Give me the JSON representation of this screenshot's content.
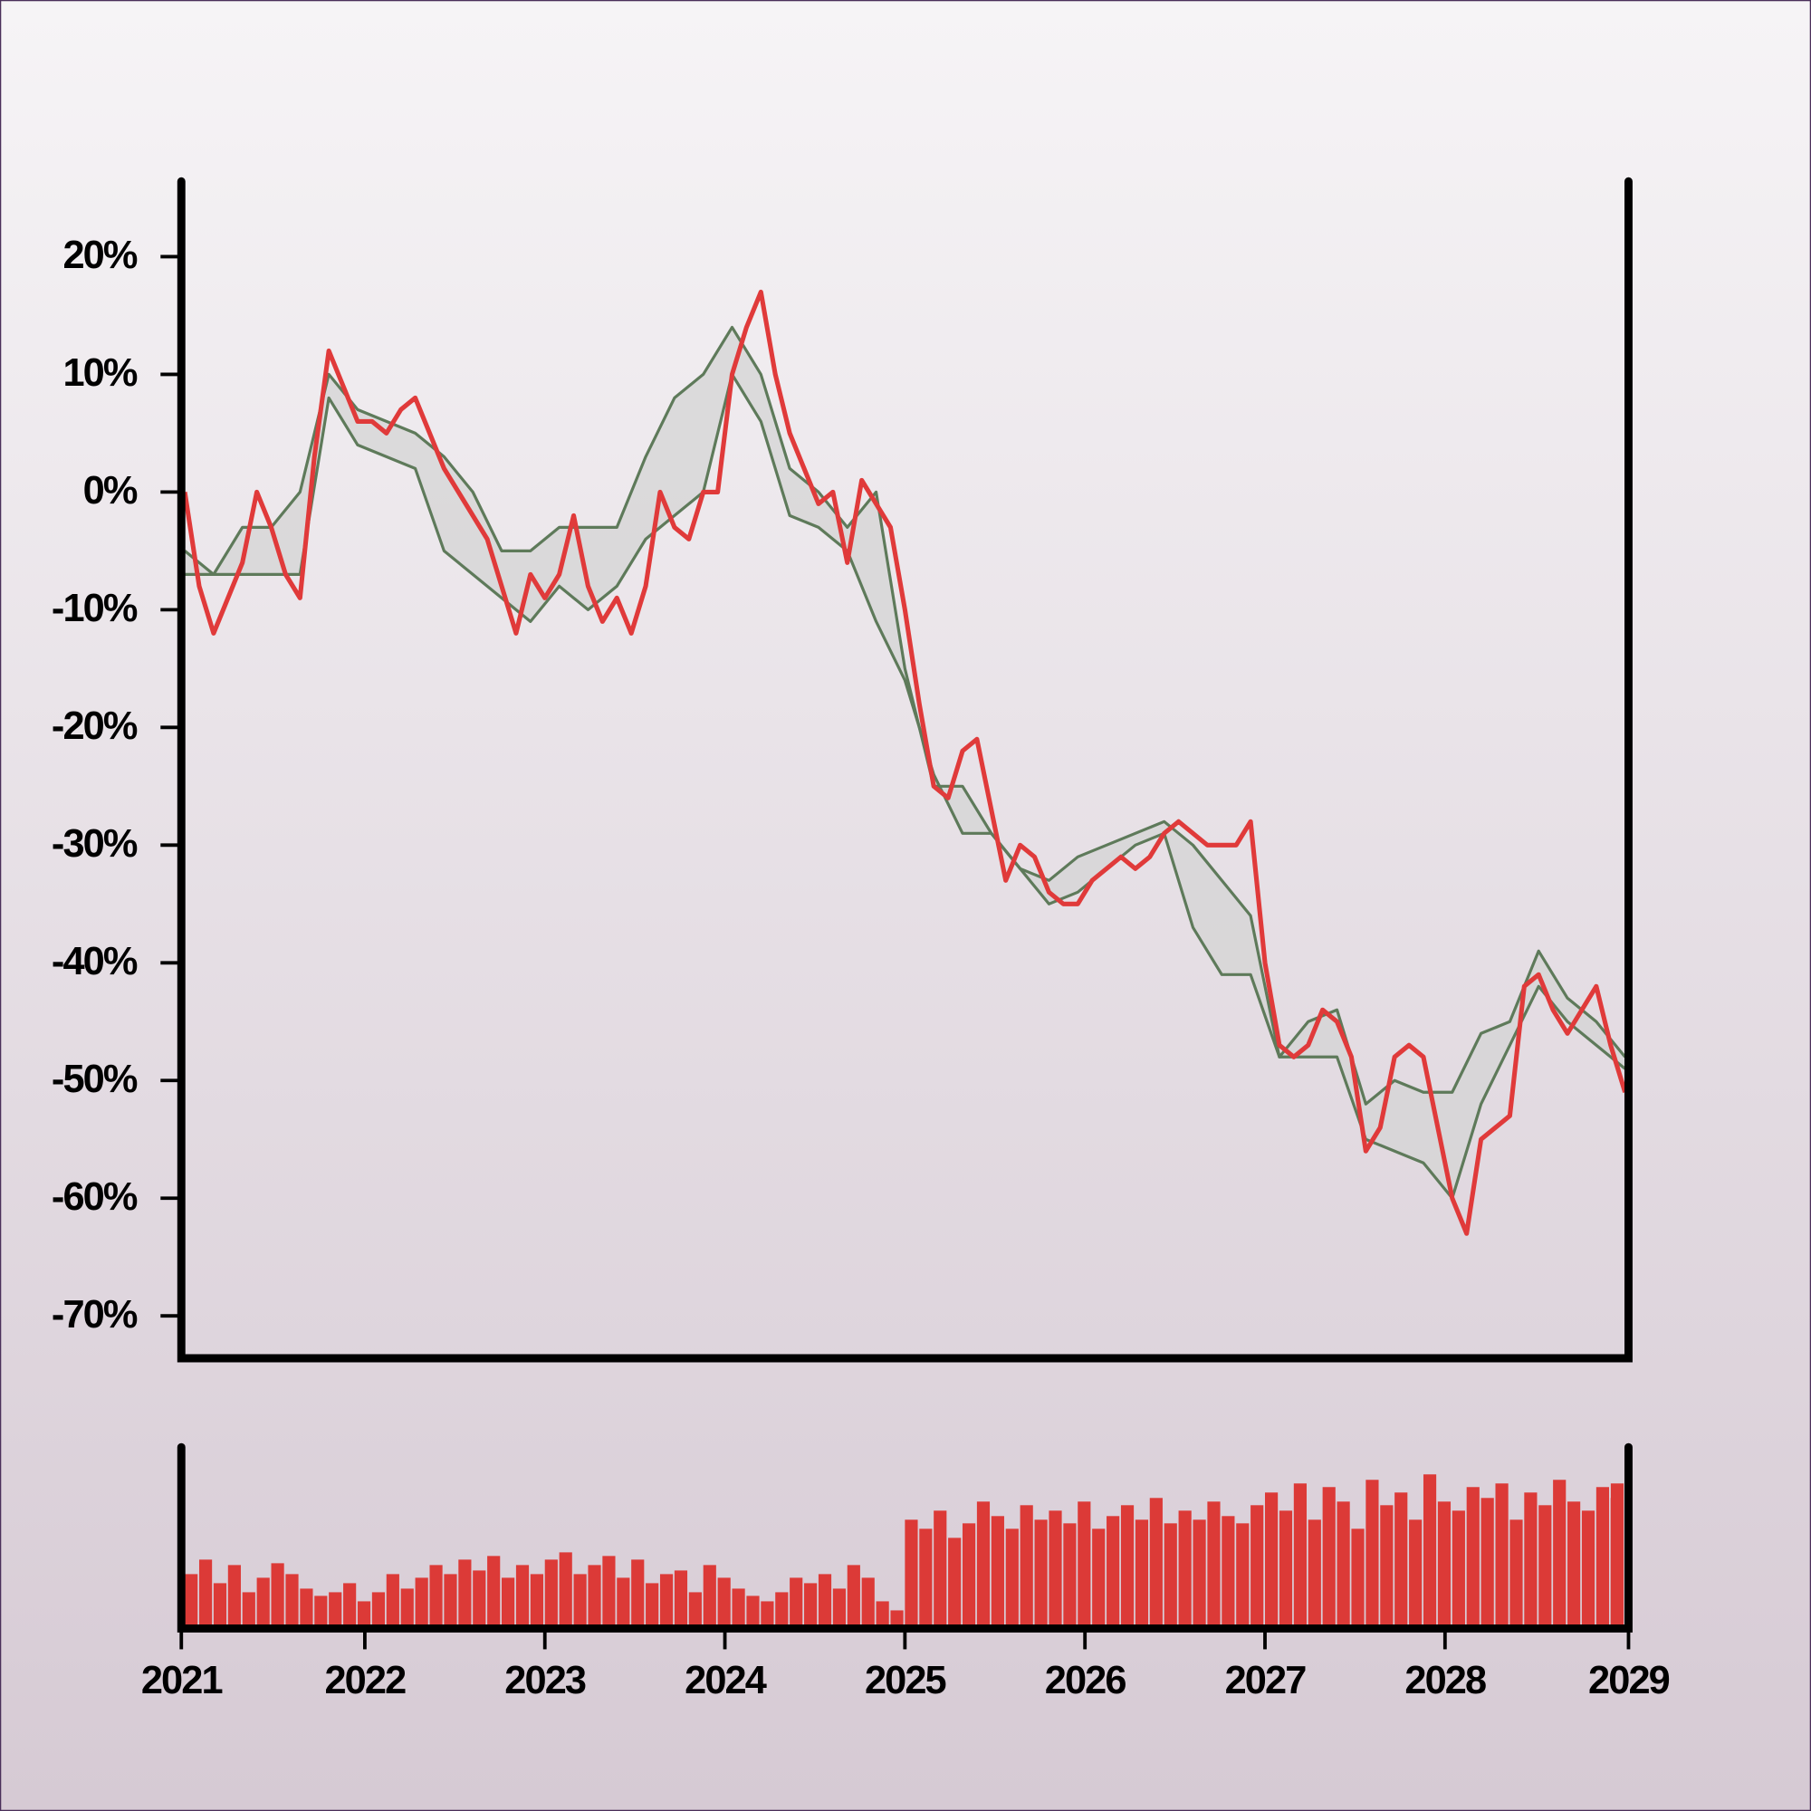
{
  "chart_data": [
    {
      "type": "line",
      "xlim": [
        2021,
        2029
      ],
      "ylim": [
        -73.6,
        26.4
      ],
      "yticks": [
        {
          "value": 20,
          "label": "20%"
        },
        {
          "value": 10,
          "label": "10%"
        },
        {
          "value": 0,
          "label": "0%"
        },
        {
          "value": -10,
          "label": "-10%"
        },
        {
          "value": -20,
          "label": "-20%"
        },
        {
          "value": -30,
          "label": "-30%"
        },
        {
          "value": -40,
          "label": "-40%"
        },
        {
          "value": -50,
          "label": "-50%"
        },
        {
          "value": -60,
          "label": "-60%"
        },
        {
          "value": -70,
          "label": "-70%"
        }
      ],
      "fill_between": [
        1,
        2
      ],
      "fill_color": "#d4d4d4",
      "series": [
        {
          "color": "#e03a3a",
          "x": [
            2021.0,
            2021.08,
            2021.16,
            2021.24,
            2021.32,
            2021.4,
            2021.48,
            2021.56,
            2021.64,
            2021.72,
            2021.8,
            2021.88,
            2021.96,
            2022.04,
            2022.12,
            2022.2,
            2022.28,
            2022.36,
            2022.44,
            2022.52,
            2022.6,
            2022.68,
            2022.76,
            2022.84,
            2022.92,
            2023.0,
            2023.08,
            2023.16,
            2023.24,
            2023.32,
            2023.4,
            2023.48,
            2023.56,
            2023.64,
            2023.72,
            2023.8,
            2023.88,
            2023.96,
            2024.04,
            2024.12,
            2024.2,
            2024.28,
            2024.36,
            2024.44,
            2024.52,
            2024.6,
            2024.68,
            2024.76,
            2024.84,
            2024.92,
            2025.0,
            2025.08,
            2025.16,
            2025.24,
            2025.32,
            2025.4,
            2025.48,
            2025.56,
            2025.64,
            2025.72,
            2025.8,
            2025.88,
            2025.96,
            2026.04,
            2026.12,
            2026.2,
            2026.28,
            2026.36,
            2026.44,
            2026.52,
            2026.6,
            2026.68,
            2026.76,
            2026.84,
            2026.92,
            2027.0,
            2027.08,
            2027.16,
            2027.24,
            2027.32,
            2027.4,
            2027.48,
            2027.56,
            2027.64,
            2027.72,
            2027.8,
            2027.88,
            2027.96,
            2028.04,
            2028.12,
            2028.2,
            2028.28,
            2028.36,
            2028.44,
            2028.52,
            2028.6,
            2028.68,
            2028.76,
            2028.84,
            2028.92,
            2029.0
          ],
          "values": [
            0,
            -8,
            -12,
            -9,
            -6,
            0,
            -3,
            -7,
            -9,
            3,
            12,
            9,
            6,
            6,
            5,
            7,
            8,
            5,
            2,
            0,
            -2,
            -4,
            -8,
            -12,
            -7,
            -9,
            -7,
            -2,
            -8,
            -11,
            -9,
            -12,
            -8,
            0,
            -3,
            -4,
            0,
            0,
            10,
            14,
            17,
            10,
            5,
            2,
            -1,
            0,
            -6,
            1,
            -1,
            -3,
            -10,
            -18,
            -25,
            -26,
            -22,
            -21,
            -27,
            -33,
            -30,
            -31,
            -34,
            -35,
            -35,
            -33,
            -32,
            -31,
            -32,
            -31,
            -29,
            -28,
            -29,
            -30,
            -30,
            -30,
            -28,
            -40,
            -47,
            -48,
            -47,
            -44,
            -45,
            -48,
            -56,
            -54,
            -48,
            -47,
            -48,
            -54,
            -60,
            -63,
            -55,
            -54,
            -53,
            -42,
            -41,
            -44,
            -46,
            -44,
            -42,
            -47,
            -51
          ]
        },
        {
          "color": "#5e7a5a",
          "x": [
            2021.0,
            2021.16,
            2021.32,
            2021.48,
            2021.64,
            2021.8,
            2021.96,
            2022.12,
            2022.28,
            2022.44,
            2022.6,
            2022.76,
            2022.92,
            2023.08,
            2023.24,
            2023.4,
            2023.56,
            2023.72,
            2023.88,
            2024.04,
            2024.2,
            2024.36,
            2024.52,
            2024.68,
            2024.84,
            2025.0,
            2025.16,
            2025.32,
            2025.48,
            2025.64,
            2025.8,
            2025.96,
            2026.12,
            2026.28,
            2026.44,
            2026.6,
            2026.76,
            2026.92,
            2027.08,
            2027.24,
            2027.4,
            2027.56,
            2027.72,
            2027.88,
            2028.04,
            2028.2,
            2028.36,
            2028.52,
            2028.68,
            2028.84,
            2029.0
          ],
          "values": [
            -5,
            -7,
            -3,
            -3,
            0,
            10,
            7,
            6,
            5,
            3,
            0,
            -5,
            -5,
            -3,
            -3,
            -3,
            3,
            8,
            10,
            14,
            10,
            2,
            0,
            -3,
            0,
            -15,
            -25,
            -25,
            -29,
            -32,
            -33,
            -31,
            -30,
            -29,
            -28,
            -30,
            -33,
            -36,
            -48,
            -45,
            -44,
            -52,
            -50,
            -51,
            -51,
            -46,
            -45,
            -39,
            -43,
            -45,
            -48
          ]
        },
        {
          "color": "#5e7a5a",
          "x": [
            2021.0,
            2021.16,
            2021.32,
            2021.48,
            2021.64,
            2021.8,
            2021.96,
            2022.12,
            2022.28,
            2022.44,
            2022.6,
            2022.76,
            2022.92,
            2023.08,
            2023.24,
            2023.4,
            2023.56,
            2023.72,
            2023.88,
            2024.04,
            2024.2,
            2024.36,
            2024.52,
            2024.68,
            2024.84,
            2025.0,
            2025.16,
            2025.32,
            2025.48,
            2025.64,
            2025.8,
            2025.96,
            2026.12,
            2026.28,
            2026.44,
            2026.6,
            2026.76,
            2026.92,
            2027.08,
            2027.24,
            2027.4,
            2027.56,
            2027.72,
            2027.88,
            2028.04,
            2028.2,
            2028.36,
            2028.52,
            2028.68,
            2028.84,
            2029.0
          ],
          "values": [
            -7,
            -7,
            -7,
            -7,
            -7,
            8,
            4,
            3,
            2,
            -5,
            -7,
            -9,
            -11,
            -8,
            -10,
            -8,
            -4,
            -2,
            0,
            10,
            6,
            -2,
            -3,
            -5,
            -11,
            -16,
            -24,
            -29,
            -29,
            -32,
            -35,
            -34,
            -32,
            -30,
            -29,
            -37,
            -41,
            -41,
            -48,
            -48,
            -48,
            -55,
            -56,
            -57,
            -60,
            -52,
            -47,
            -42,
            -45,
            -47,
            -49
          ]
        }
      ]
    },
    {
      "type": "bar",
      "xlim": [
        2021,
        2029
      ],
      "ylim": [
        0,
        100
      ],
      "xticks": [
        2021,
        2022,
        2023,
        2024,
        2025,
        2026,
        2027,
        2028,
        2029
      ],
      "color": "#dc3a37",
      "x": [
        2021.0,
        2021.08,
        2021.16,
        2021.24,
        2021.32,
        2021.4,
        2021.48,
        2021.56,
        2021.64,
        2021.72,
        2021.8,
        2021.88,
        2021.96,
        2022.04,
        2022.12,
        2022.2,
        2022.28,
        2022.36,
        2022.44,
        2022.52,
        2022.6,
        2022.68,
        2022.76,
        2022.84,
        2022.92,
        2023.0,
        2023.08,
        2023.16,
        2023.24,
        2023.32,
        2023.4,
        2023.48,
        2023.56,
        2023.64,
        2023.72,
        2023.8,
        2023.88,
        2023.96,
        2024.04,
        2024.12,
        2024.2,
        2024.28,
        2024.36,
        2024.44,
        2024.52,
        2024.6,
        2024.68,
        2024.76,
        2024.84,
        2024.92,
        2025.0,
        2025.08,
        2025.16,
        2025.24,
        2025.32,
        2025.4,
        2025.48,
        2025.56,
        2025.64,
        2025.72,
        2025.8,
        2025.88,
        2025.96,
        2026.04,
        2026.12,
        2026.2,
        2026.28,
        2026.36,
        2026.44,
        2026.52,
        2026.6,
        2026.68,
        2026.76,
        2026.84,
        2026.92,
        2027.0,
        2027.08,
        2027.16,
        2027.24,
        2027.32,
        2027.4,
        2027.48,
        2027.56,
        2027.64,
        2027.72,
        2027.8,
        2027.88,
        2027.96,
        2028.04,
        2028.12,
        2028.2,
        2028.28,
        2028.36,
        2028.44,
        2028.52,
        2028.6,
        2028.68,
        2028.76,
        2028.84,
        2028.92,
        2029.0
      ],
      "values": [
        30,
        38,
        25,
        35,
        20,
        28,
        36,
        30,
        22,
        18,
        20,
        25,
        15,
        20,
        30,
        22,
        28,
        35,
        30,
        38,
        32,
        40,
        28,
        35,
        30,
        38,
        42,
        30,
        35,
        40,
        28,
        38,
        25,
        30,
        32,
        20,
        35,
        28,
        22,
        18,
        15,
        20,
        28,
        25,
        30,
        22,
        35,
        28,
        15,
        10,
        60,
        55,
        65,
        50,
        58,
        70,
        62,
        55,
        68,
        60,
        65,
        58,
        70,
        55,
        62,
        68,
        60,
        72,
        58,
        65,
        60,
        70,
        62,
        58,
        68,
        75,
        65,
        80,
        60,
        78,
        70,
        55,
        82,
        68,
        75,
        60,
        85,
        70,
        65,
        78,
        72,
        80,
        60,
        75,
        68,
        82,
        70,
        65,
        78,
        72,
        80
      ]
    }
  ]
}
